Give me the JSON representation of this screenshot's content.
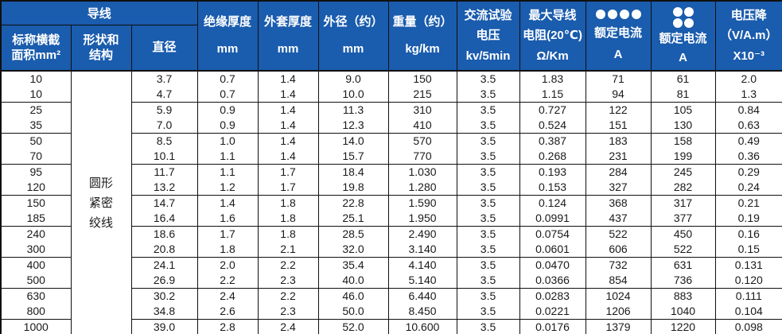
{
  "colors": {
    "header_bg": "#1a5cad",
    "header_text": "#ffffff",
    "body_text": "#1a1a1a",
    "border": "#101010"
  },
  "table": {
    "header": {
      "conductor_group": "导线",
      "col_area": [
        "标称横截",
        "面积mm²"
      ],
      "col_shape": [
        "形状和",
        "结构"
      ],
      "col_diameter": "直径",
      "col_insulation": [
        "绝缘厚度",
        "mm"
      ],
      "col_sheath": [
        "外套厚度",
        "mm"
      ],
      "col_od": [
        "外径（约）",
        "mm"
      ],
      "col_weight": [
        "重量（约）",
        "kg/km"
      ],
      "col_ac": [
        "交流试验",
        "电压",
        "kv/5min"
      ],
      "col_resistance": [
        "最大导线",
        "电阻(20℃)",
        "Ω/Km"
      ],
      "col_current_flat": [
        "额定电流",
        "A"
      ],
      "col_current_quad": [
        "额定电流",
        "A"
      ],
      "col_vdrop": [
        "电压降",
        "（V/A.m）",
        "X10⁻³"
      ],
      "flat_icon": "four-dots-in-row",
      "quad_icon": "four-dots-2x2"
    },
    "shape_cell": [
      "圆形",
      "紧密",
      "绞线"
    ],
    "rows": [
      [
        "10",
        "3.7",
        "0.7",
        "1.4",
        "9.0",
        "150",
        "3.5",
        "1.83",
        "71",
        "61",
        "2.0"
      ],
      [
        "10",
        "4.7",
        "0.7",
        "1.4",
        "10.0",
        "215",
        "3.5",
        "1.15",
        "94",
        "81",
        "1.3"
      ],
      [
        "25",
        "5.9",
        "0.9",
        "1.4",
        "11.3",
        "310",
        "3.5",
        "0.727",
        "122",
        "105",
        "0.84"
      ],
      [
        "35",
        "7.0",
        "0.9",
        "1.4",
        "12.3",
        "410",
        "3.5",
        "0.524",
        "151",
        "130",
        "0.63"
      ],
      [
        "50",
        "8.5",
        "1.0",
        "1.4",
        "14.0",
        "570",
        "3.5",
        "0.387",
        "183",
        "158",
        "0.49"
      ],
      [
        "70",
        "10.1",
        "1.1",
        "1.4",
        "15.7",
        "770",
        "3.5",
        "0.268",
        "231",
        "199",
        "0.36"
      ],
      [
        "95",
        "11.7",
        "1.1",
        "1.7",
        "18.4",
        "1.030",
        "3.5",
        "0.193",
        "284",
        "245",
        "0.29"
      ],
      [
        "120",
        "13.2",
        "1.2",
        "1.7",
        "19.8",
        "1.280",
        "3.5",
        "0.153",
        "327",
        "282",
        "0.24"
      ],
      [
        "150",
        "14.7",
        "1.4",
        "1.8",
        "22.8",
        "1.590",
        "3.5",
        "0.124",
        "368",
        "317",
        "0.21"
      ],
      [
        "185",
        "16.4",
        "1.6",
        "1.8",
        "25.1",
        "1.950",
        "3.5",
        "0.0991",
        "437",
        "377",
        "0.19"
      ],
      [
        "240",
        "18.6",
        "1.7",
        "1.8",
        "28.5",
        "2.490",
        "3.5",
        "0.0754",
        "522",
        "450",
        "0.16"
      ],
      [
        "300",
        "20.8",
        "1.8",
        "2.1",
        "32.0",
        "3.140",
        "3.5",
        "0.0601",
        "606",
        "522",
        "0.15"
      ],
      [
        "400",
        "24.1",
        "2.0",
        "2.2",
        "35.4",
        "4.140",
        "3.5",
        "0.0470",
        "732",
        "631",
        "0.131"
      ],
      [
        "500",
        "26.9",
        "2.2",
        "2.3",
        "40.0",
        "5.140",
        "3.5",
        "0.0366",
        "854",
        "736",
        "0.120"
      ],
      [
        "630",
        "30.2",
        "2.4",
        "2.2",
        "46.0",
        "6.440",
        "3.5",
        "0.0283",
        "1024",
        "883",
        "0.111"
      ],
      [
        "800",
        "34.8",
        "2.6",
        "2.3",
        "50.0",
        "8.450",
        "3.5",
        "0.0221",
        "1206",
        "1040",
        "0.104"
      ],
      [
        "1000",
        "39.0",
        "2.8",
        "2.4",
        "52.0",
        "10.600",
        "3.5",
        "0.0176",
        "1379",
        "1220",
        "0.098"
      ]
    ]
  }
}
